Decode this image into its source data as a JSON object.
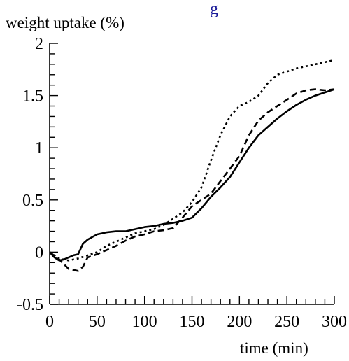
{
  "chart_data": {
    "type": "line",
    "title": "g",
    "ylabel": "weight uptake (%)",
    "xlabel": "time (min)",
    "xlim": [
      0,
      300
    ],
    "ylim": [
      -0.5,
      2
    ],
    "grid": false,
    "legend": "none",
    "x_ticks": [
      "0",
      "50",
      "100",
      "150",
      "200",
      "250",
      "300"
    ],
    "y_ticks": [
      "2",
      "1.5",
      "1",
      "0.5",
      "0",
      "-0.5"
    ],
    "colors": {
      "axis": "#000000",
      "series": "#000000",
      "title": "#1a1a99"
    },
    "series": [
      {
        "style": "solid",
        "x": [
          0,
          5,
          10,
          15,
          20,
          25,
          30,
          35,
          40,
          50,
          60,
          70,
          80,
          90,
          100,
          110,
          120,
          130,
          140,
          150,
          160,
          170,
          180,
          190,
          200,
          210,
          220,
          230,
          240,
          250,
          260,
          270,
          280,
          290,
          300
        ],
        "y": [
          0.0,
          -0.05,
          -0.08,
          -0.07,
          -0.05,
          -0.03,
          -0.02,
          0.08,
          0.12,
          0.17,
          0.19,
          0.2,
          0.2,
          0.22,
          0.24,
          0.25,
          0.27,
          0.28,
          0.3,
          0.33,
          0.42,
          0.53,
          0.62,
          0.72,
          0.86,
          1.0,
          1.12,
          1.2,
          1.28,
          1.35,
          1.41,
          1.46,
          1.5,
          1.53,
          1.56
        ]
      },
      {
        "style": "dashed",
        "x": [
          0,
          10,
          20,
          30,
          35,
          40,
          50,
          60,
          70,
          80,
          90,
          100,
          110,
          120,
          130,
          140,
          150,
          160,
          170,
          180,
          190,
          200,
          210,
          220,
          230,
          240,
          250,
          260,
          270,
          280,
          290,
          300
        ],
        "y": [
          0.0,
          -0.07,
          -0.16,
          -0.18,
          -0.14,
          -0.05,
          -0.02,
          0.02,
          0.06,
          0.11,
          0.15,
          0.17,
          0.2,
          0.21,
          0.23,
          0.33,
          0.44,
          0.5,
          0.56,
          0.68,
          0.8,
          0.92,
          1.12,
          1.26,
          1.34,
          1.4,
          1.46,
          1.52,
          1.55,
          1.56,
          1.55,
          1.56
        ]
      },
      {
        "style": "dotted",
        "x": [
          0,
          10,
          20,
          30,
          40,
          50,
          60,
          70,
          80,
          90,
          100,
          110,
          120,
          130,
          140,
          150,
          160,
          170,
          180,
          190,
          200,
          210,
          220,
          230,
          240,
          250,
          260,
          270,
          280,
          290,
          300
        ],
        "y": [
          0.0,
          -0.06,
          -0.08,
          -0.06,
          -0.03,
          0.0,
          0.06,
          0.1,
          0.14,
          0.18,
          0.2,
          0.22,
          0.26,
          0.32,
          0.38,
          0.48,
          0.62,
          0.88,
          1.12,
          1.3,
          1.4,
          1.44,
          1.5,
          1.62,
          1.7,
          1.73,
          1.76,
          1.78,
          1.8,
          1.82,
          1.84
        ]
      }
    ]
  }
}
